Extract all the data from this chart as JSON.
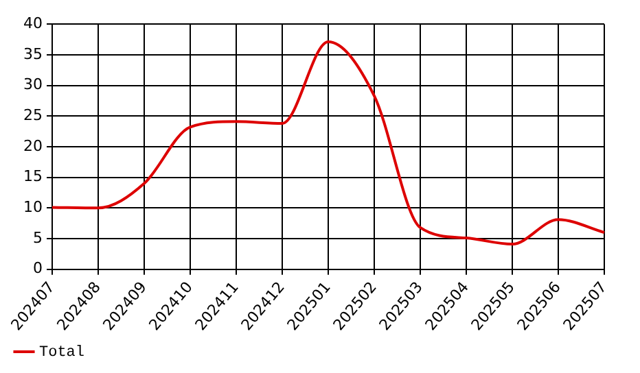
{
  "chart_data": {
    "type": "line",
    "categories": [
      "202407",
      "202408",
      "202409",
      "202410",
      "202411",
      "202412",
      "202501",
      "202502",
      "202503",
      "202504",
      "202505",
      "202506",
      "202507"
    ],
    "series": [
      {
        "name": "Total",
        "color": "#dd0000",
        "values": [
          10.1,
          10.0,
          14.0,
          23.2,
          24.1,
          23.8,
          37.1,
          28.3,
          6.8,
          5.1,
          4.1,
          8.1,
          6.0
        ]
      }
    ],
    "ylim": [
      0,
      40
    ],
    "yticks": [
      0,
      5,
      10,
      15,
      20,
      25,
      30,
      35,
      40
    ],
    "grid": true,
    "legend": "bottom left",
    "marker": "none",
    "line_style": "solid"
  }
}
